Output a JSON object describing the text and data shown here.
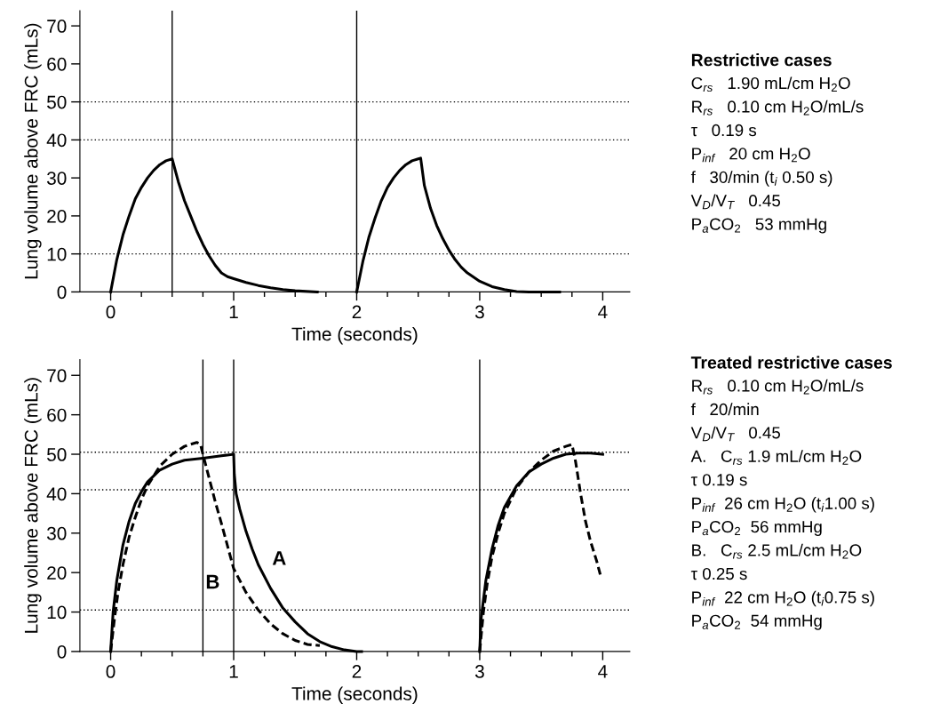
{
  "chart_data": [
    {
      "type": "line",
      "xlabel": "Time (seconds)",
      "ylabel": "Lung volume above FRC (mLs)",
      "xlim": [
        -0.25,
        4.22
      ],
      "ylim": [
        0,
        74
      ],
      "xticks": [
        0,
        {
          "value": 0.25,
          "label": null
        },
        {
          "value": 0.5,
          "label": null
        },
        {
          "value": 0.75,
          "label": null
        },
        1,
        {
          "value": 1.25,
          "label": null
        },
        {
          "value": 1.5,
          "label": null
        },
        {
          "value": 1.75,
          "label": null
        },
        2,
        {
          "value": 2.25,
          "label": null
        },
        {
          "value": 2.5,
          "label": null
        },
        {
          "value": 2.75,
          "label": null
        },
        3,
        {
          "value": 3.25,
          "label": null
        },
        {
          "value": 3.5,
          "label": null
        },
        {
          "value": 3.75,
          "label": null
        },
        4
      ],
      "yticks": [
        0,
        10,
        20,
        30,
        40,
        50,
        60,
        70
      ],
      "grid": false,
      "legend": false,
      "marker": "none",
      "ref_lines": [
        {
          "axis": "x",
          "value": 0.5,
          "color": "#000000",
          "line_style": "solid"
        },
        {
          "axis": "x",
          "value": 2,
          "color": "#000000",
          "line_style": "solid"
        },
        {
          "axis": "y",
          "value": 10,
          "color": "#000000",
          "line_style": "dotted"
        },
        {
          "axis": "y",
          "value": 40,
          "color": "#000000",
          "line_style": "dotted"
        },
        {
          "axis": "y",
          "value": 50,
          "color": "#000000",
          "line_style": "dotted"
        }
      ],
      "series": [
        {
          "color": "#000000",
          "line_style": "solid",
          "x": [
            0,
            0.05,
            0.1,
            0.15,
            0.2,
            0.25,
            0.3,
            0.35,
            0.4,
            0.45,
            0.5,
            0.55,
            0.6,
            0.65,
            0.7,
            0.75,
            0.8,
            0.85,
            0.9,
            0.95,
            1.0,
            1.1,
            1.2,
            1.3,
            1.4,
            1.5,
            1.68,
            1.8,
            2.0,
            2.05,
            2.1,
            2.15,
            2.2,
            2.25,
            2.3,
            2.35,
            2.4,
            2.45,
            2.5,
            2.52,
            2.55,
            2.6,
            2.65,
            2.7,
            2.75,
            2.8,
            2.85,
            2.9,
            3.0,
            3.1,
            3.2,
            3.3,
            3.4,
            3.5,
            3.65
          ],
          "values": [
            0,
            8.5,
            15,
            20,
            24.5,
            27.5,
            30,
            32,
            33.5,
            34.5,
            35,
            29,
            24,
            20,
            16,
            12.5,
            9.5,
            7,
            5,
            4,
            3.5,
            2.5,
            1.7,
            1.1,
            0.6,
            0.3,
            0,
            null,
            0,
            8,
            14.5,
            19.5,
            24,
            27.5,
            30,
            32,
            33.5,
            34.5,
            35,
            35.2,
            28,
            22,
            17.5,
            14,
            11,
            8.5,
            6.5,
            5,
            2.8,
            1.4,
            0.6,
            0.1,
            0,
            0,
            0
          ]
        }
      ]
    },
    {
      "type": "other",
      "title": "Restrictive cases",
      "annotations": [
        "C$_{rs}$   1.90 mL/cm H$_{2}$O",
        "R$_{rs}$   0.10 cm H$_{2}$O/mL/s",
        "τ   0.19 s",
        "P$_{inf}$   20 cm H$_{2}$O",
        "f   30/min (t$_{i}$ 0.50 s)",
        "V$_{D}$/V$_{T}$   0.45",
        "P$_{a}$CO$_{2}$   53 mmHg"
      ]
    },
    {
      "type": "line",
      "xlabel": "Time (seconds)",
      "ylabel": "Lung volume above FRC (mLs)",
      "xlim": [
        -0.25,
        4.22
      ],
      "ylim": [
        0,
        74
      ],
      "xticks": [
        0,
        {
          "value": 0.25,
          "label": null
        },
        {
          "value": 0.5,
          "label": null
        },
        {
          "value": 0.75,
          "label": null
        },
        1,
        {
          "value": 1.25,
          "label": null
        },
        {
          "value": 1.5,
          "label": null
        },
        {
          "value": 1.75,
          "label": null
        },
        2,
        {
          "value": 2.25,
          "label": null
        },
        {
          "value": 2.5,
          "label": null
        },
        {
          "value": 2.75,
          "label": null
        },
        3,
        {
          "value": 3.25,
          "label": null
        },
        {
          "value": 3.5,
          "label": null
        },
        {
          "value": 3.75,
          "label": null
        },
        4
      ],
      "yticks": [
        0,
        10,
        20,
        30,
        40,
        50,
        60,
        70
      ],
      "grid": false,
      "legend": false,
      "marker": "none",
      "ref_lines": [
        {
          "axis": "x",
          "value": 0.75,
          "color": "#000000",
          "line_style": "solid"
        },
        {
          "axis": "x",
          "value": 1,
          "color": "#000000",
          "line_style": "solid"
        },
        {
          "axis": "x",
          "value": 3,
          "color": "#000000",
          "line_style": "solid"
        },
        {
          "axis": "y",
          "value": 10.5,
          "color": "#000000",
          "line_style": "dotted"
        },
        {
          "axis": "y",
          "value": 41,
          "color": "#000000",
          "line_style": "dotted"
        },
        {
          "axis": "y",
          "value": 50.5,
          "color": "#000000",
          "line_style": "dotted"
        }
      ],
      "series": [
        {
          "name": "A",
          "color": "#000000",
          "line_style": "solid",
          "x": [
            0,
            0.02,
            0.05,
            0.1,
            0.15,
            0.2,
            0.25,
            0.3,
            0.35,
            0.4,
            0.5,
            0.6,
            0.75,
            0.9,
            1.0,
            1.005,
            1.02,
            1.05,
            1.1,
            1.15,
            1.2,
            1.3,
            1.4,
            1.5,
            1.6,
            1.7,
            1.8,
            1.9,
            2.0,
            2.04,
            2.5,
            3.0,
            3.01,
            3.05,
            3.1,
            3.15,
            3.2,
            3.3,
            3.4,
            3.5,
            3.6,
            3.7,
            3.8,
            3.9,
            4.0
          ],
          "values": [
            0,
            10,
            18,
            27,
            33,
            37.5,
            40.5,
            43,
            44.5,
            46,
            47.5,
            48.5,
            49,
            49.6,
            50,
            45,
            40,
            36,
            30.5,
            26,
            22,
            16,
            11,
            7.5,
            4.5,
            2.5,
            1.2,
            0.4,
            0,
            0,
            null,
            0,
            8,
            18,
            26,
            32,
            36.5,
            42,
            45.5,
            47.5,
            49,
            50,
            50.3,
            50.3,
            50
          ]
        },
        {
          "name": "B",
          "color": "#000000",
          "line_style": "dashed",
          "x": [
            0,
            0.03,
            0.06,
            0.1,
            0.15,
            0.2,
            0.25,
            0.3,
            0.4,
            0.5,
            0.6,
            0.7,
            0.73,
            0.75,
            0.8,
            0.85,
            0.9,
            1.0,
            1.1,
            1.2,
            1.3,
            1.4,
            1.5,
            1.6,
            1.7,
            2.5,
            3.0,
            3.03,
            3.06,
            3.1,
            3.15,
            3.2,
            3.3,
            3.4,
            3.5,
            3.6,
            3.7,
            3.75,
            3.78,
            3.82,
            3.86,
            3.9,
            3.95,
            3.98
          ],
          "values": [
            0,
            8,
            15,
            22,
            29,
            34,
            38.5,
            42,
            47,
            50,
            52,
            53,
            52.5,
            50,
            44,
            38,
            32.5,
            21,
            15,
            10.5,
            7,
            4.5,
            2.8,
            1.8,
            1.5,
            null,
            0,
            10,
            17,
            24,
            30,
            35,
            41.5,
            45.5,
            48.5,
            50.8,
            52,
            52.5,
            48,
            40,
            33,
            28,
            23,
            19.5
          ]
        }
      ]
    },
    {
      "type": "other",
      "title": "Treated restrictive cases",
      "annotations": [
        "R$_{rs}$   0.10 cm H$_{2}$O/mL/s",
        "f   20/min",
        "V$_{D}$/V$_{T}$   0.45",
        "A.   C$_{rs}$ 1.9 mL/cm H$_{2}$O",
        "τ 0.19 s",
        "P$_{inf}$  26 cm H$_{2}$O (t$_{i}$1.00 s)",
        "P$_{a}$CO$_{2}$  56 mmHg",
        "B.   C$_{rs}$ 2.5 mL/cm H$_{2}$O",
        "τ 0.25 s",
        "P$_{inf}$  22 cm H$_{2}$O (t$_{i}$0.75 s)",
        "P$_{a}$CO$_{2}$  54 mmHg"
      ]
    }
  ]
}
